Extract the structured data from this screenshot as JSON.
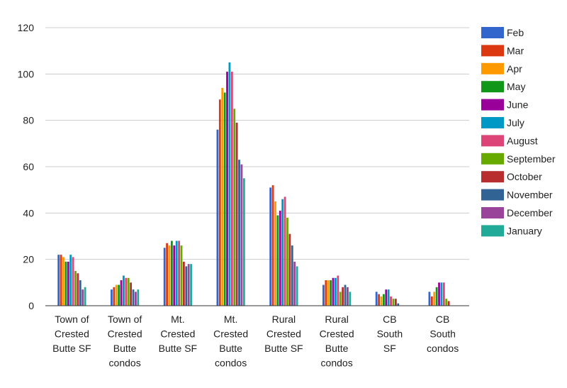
{
  "chart_data": {
    "type": "bar",
    "categories": [
      [
        "Town of",
        "Crested",
        "Butte SF"
      ],
      [
        "Town of",
        "Crested",
        "Butte",
        "condos"
      ],
      [
        "Mt.",
        "Crested",
        "Butte SF"
      ],
      [
        "Mt.",
        "Crested",
        "Butte",
        "condos"
      ],
      [
        "Rural",
        "Crested",
        "Butte SF"
      ],
      [
        "Rural",
        "Crested",
        "Butte",
        "condos"
      ],
      [
        "CB",
        "South",
        "SF"
      ],
      [
        "CB",
        "South",
        "condos"
      ]
    ],
    "ylim": [
      0,
      120
    ],
    "yticks": [
      0,
      20,
      40,
      60,
      80,
      100,
      120
    ],
    "grid": true,
    "legend_position": "right",
    "series": [
      {
        "name": "Feb",
        "color": "#3366CC",
        "values": [
          22,
          7,
          25,
          76,
          51,
          9,
          6,
          6
        ]
      },
      {
        "name": "Mar",
        "color": "#DC3912",
        "values": [
          22,
          8,
          27,
          89,
          52,
          11,
          5,
          4
        ]
      },
      {
        "name": "Apr",
        "color": "#FF9900",
        "values": [
          21,
          9,
          26,
          94,
          45,
          11,
          4,
          6
        ]
      },
      {
        "name": "May",
        "color": "#109618",
        "values": [
          19,
          9,
          28,
          92,
          39,
          11,
          5,
          8
        ]
      },
      {
        "name": "June",
        "color": "#990099",
        "values": [
          19,
          11,
          26,
          101,
          41,
          12,
          7,
          10
        ]
      },
      {
        "name": "July",
        "color": "#0099C6",
        "values": [
          22,
          13,
          28,
          105,
          46,
          12,
          7,
          10
        ]
      },
      {
        "name": "August",
        "color": "#DD4477",
        "values": [
          21,
          12,
          28,
          101,
          47,
          13,
          4,
          10
        ]
      },
      {
        "name": "September",
        "color": "#66AA00",
        "values": [
          15,
          12,
          26,
          85,
          38,
          6,
          3,
          3
        ]
      },
      {
        "name": "October",
        "color": "#B82E2E",
        "values": [
          14,
          10,
          19,
          79,
          31,
          8,
          3,
          2
        ]
      },
      {
        "name": "November",
        "color": "#316395",
        "values": [
          11,
          7,
          17,
          63,
          26,
          9,
          1,
          0
        ]
      },
      {
        "name": "December",
        "color": "#994499",
        "values": [
          7,
          6,
          18,
          61,
          19,
          8,
          0,
          0
        ]
      },
      {
        "name": "January",
        "color": "#22AA99",
        "values": [
          8,
          7,
          18,
          55,
          17,
          6,
          0,
          0
        ]
      }
    ]
  }
}
